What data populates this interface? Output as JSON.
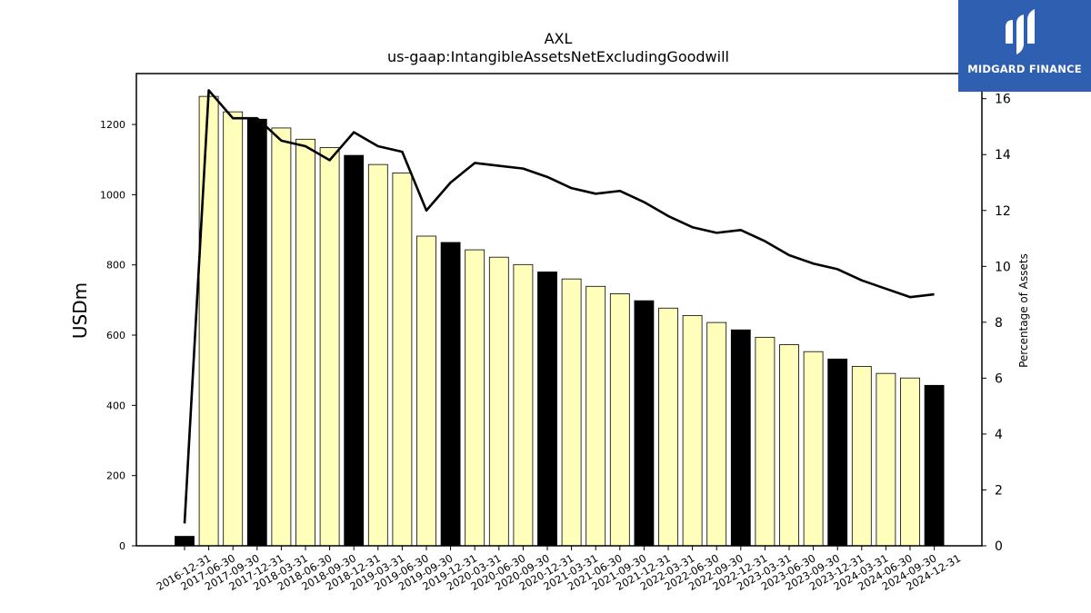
{
  "chart_data": {
    "type": "bar",
    "title": "AXL",
    "subtitle": "us-gaap:IntangibleAssetsNetExcludingGoodwill",
    "ylabel": "USDm",
    "y2label": "Percentage of Assets",
    "ylim": [
      0,
      1345
    ],
    "y2lim": [
      0,
      16.9
    ],
    "yticks": [
      "0",
      "200",
      "400",
      "600",
      "800",
      "1000",
      "1200"
    ],
    "y2ticks": [
      "0",
      "2",
      "4",
      "6",
      "8",
      "10",
      "12",
      "14",
      "16"
    ],
    "categories": [
      "2016-12-31",
      "2017-06-30",
      "2017-09-30",
      "2017-12-31",
      "2018-03-31",
      "2018-06-30",
      "2018-09-30",
      "2018-12-31",
      "2019-03-31",
      "2019-06-30",
      "2019-09-30",
      "2019-12-31",
      "2020-03-31",
      "2020-06-30",
      "2020-09-30",
      "2020-12-31",
      "2021-03-31",
      "2021-06-30",
      "2021-09-30",
      "2021-12-31",
      "2022-03-31",
      "2022-06-30",
      "2022-09-30",
      "2022-12-31",
      "2023-03-31",
      "2023-06-30",
      "2023-09-30",
      "2023-12-31",
      "2024-03-31",
      "2024-06-30",
      "2024-09-30",
      "2024-12-31"
    ],
    "series": [
      {
        "type": "bar",
        "values": [
          27,
          1280,
          1236,
          1215,
          1190,
          1158,
          1134,
          1112,
          1086,
          1062,
          882,
          864,
          843,
          822,
          801,
          780,
          760,
          739,
          718,
          698,
          677,
          656,
          636,
          615,
          594,
          573,
          553,
          532,
          511,
          491,
          478,
          457
        ],
        "highlight": [
          true,
          false,
          false,
          true,
          false,
          false,
          false,
          true,
          false,
          false,
          false,
          true,
          false,
          false,
          false,
          true,
          false,
          false,
          false,
          true,
          false,
          false,
          false,
          true,
          false,
          false,
          false,
          true,
          false,
          false,
          false,
          true
        ]
      },
      {
        "type": "line",
        "axis": "right",
        "values": [
          0.8,
          16.3,
          15.3,
          15.3,
          14.5,
          14.3,
          13.8,
          14.8,
          14.3,
          14.1,
          12.0,
          13.0,
          13.7,
          13.6,
          13.5,
          13.2,
          12.8,
          12.6,
          12.7,
          12.3,
          11.8,
          11.4,
          11.2,
          11.3,
          10.9,
          10.4,
          10.1,
          9.9,
          9.5,
          9.2,
          8.9,
          9.0
        ]
      }
    ],
    "colors": {
      "bar": "#ffffbb",
      "bar_highlight": "#000000",
      "line": "#000000"
    },
    "grid": false,
    "legend": "none"
  },
  "logo": {
    "text": "MIDGARD FINANCE",
    "background": "#2f5fb0"
  }
}
